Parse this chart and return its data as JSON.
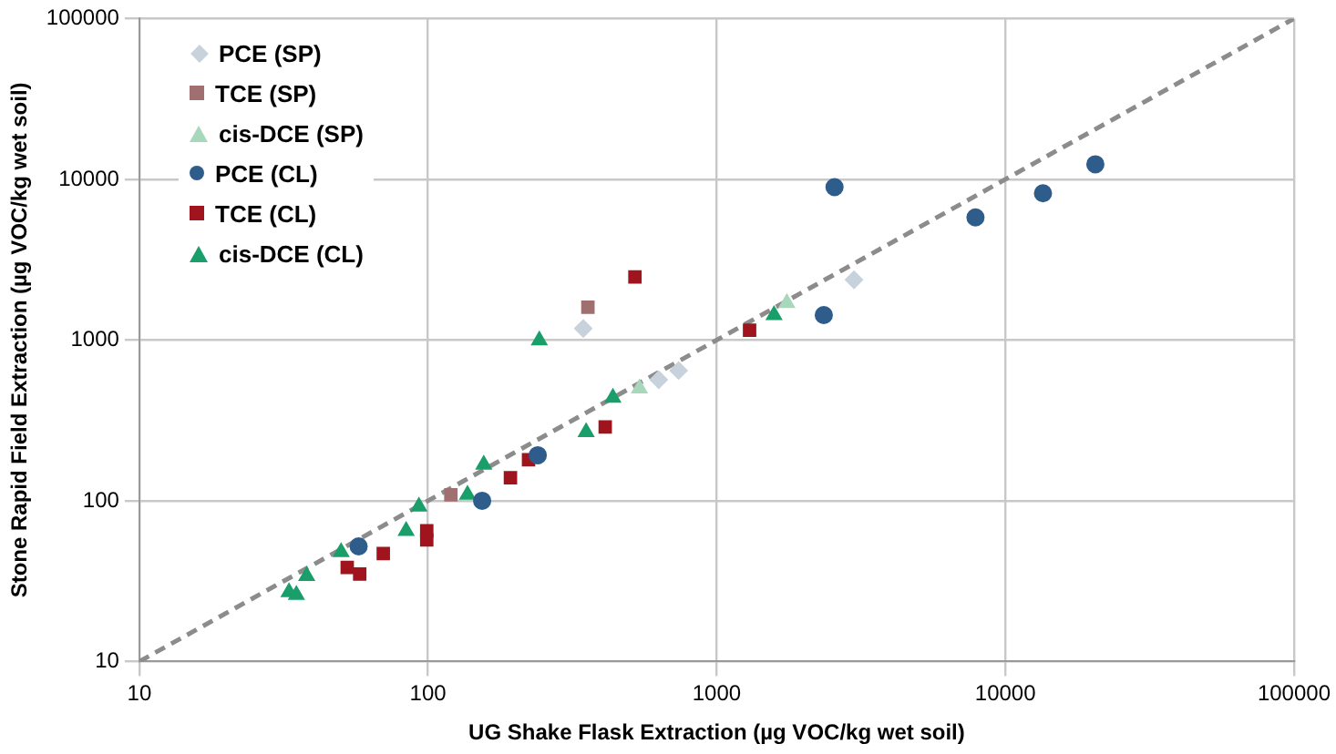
{
  "chart_data": {
    "type": "scatter",
    "xlabel": "UG Shake Flask Extraction (µg VOC/kg wet soil)",
    "ylabel": "Stone Rapid Field Extraction (µg VOC/kg wet soil)",
    "log": "xy",
    "grid": true,
    "legend": "top left",
    "xlim": [
      10,
      100000
    ],
    "ylim": [
      10,
      100000
    ],
    "xticks": [
      10,
      100,
      1000,
      10000,
      100000
    ],
    "yticks": [
      10,
      100,
      1000,
      10000,
      100000
    ],
    "series": [
      {
        "name": "PCE (SP)",
        "color": "#c8d2dc",
        "marker": "diamond",
        "x": [
          345,
          630,
          738,
          2990
        ],
        "values": [
          1180,
          566,
          646,
          2370
        ]
      },
      {
        "name": "TCE (SP)",
        "color": "#a07070",
        "marker": "square",
        "x": [
          120,
          358
        ],
        "values": [
          109,
          1600
        ]
      },
      {
        "name": "cis-DCE (SP)",
        "color": "#a8d8bc",
        "marker": "triangle",
        "x": [
          540,
          1750
        ],
        "values": [
          500,
          1700
        ]
      },
      {
        "name": "PCE (CL)",
        "color": "#2e5d8c",
        "marker": "circle",
        "x": [
          57.5,
          154,
          240,
          2350,
          2560,
          7880,
          13500,
          20500
        ],
        "values": [
          52,
          100,
          192,
          1430,
          8940,
          5790,
          8180,
          12400
        ]
      },
      {
        "name": "TCE (CL)",
        "color": "#a0141e",
        "marker": "square",
        "x": [
          52.5,
          58,
          70,
          99,
          99,
          193,
          223,
          411,
          521,
          1300
        ],
        "values": [
          38.5,
          35,
          47,
          65,
          57,
          139,
          180,
          288,
          2470,
          1150
        ]
      },
      {
        "name": "cis-DCE (CL)",
        "color": "#1a9e6a",
        "marker": "triangle",
        "x": [
          33,
          35,
          38,
          50,
          84,
          93,
          137,
          156,
          243,
          353,
          437,
          1580
        ],
        "values": [
          27,
          26,
          34,
          48,
          65,
          92,
          109,
          168,
          995,
          267,
          437,
          1430
        ]
      },
      {
        "type": "line",
        "color": "#8c8c8c",
        "line_style": "dashed",
        "marker": "none",
        "x": [
          10,
          100000
        ],
        "values": [
          10,
          100000
        ]
      }
    ]
  }
}
